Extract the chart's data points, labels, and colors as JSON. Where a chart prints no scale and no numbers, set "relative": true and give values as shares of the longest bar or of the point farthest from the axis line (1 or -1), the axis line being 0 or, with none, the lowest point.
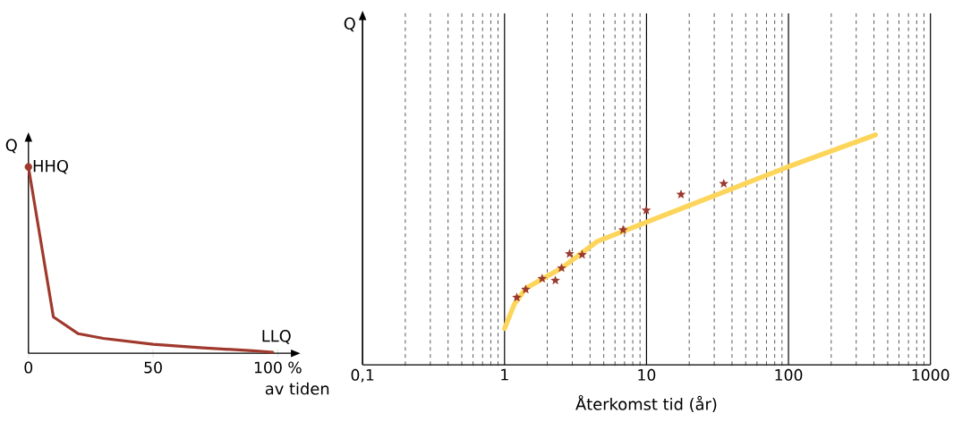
{
  "chart_data": [
    {
      "type": "line",
      "relative": true,
      "xlim": [
        0,
        108
      ],
      "xticks": [
        0,
        50,
        {
          "value": 100,
          "label": "100 %"
        }
      ],
      "xlabel": "av tiden",
      "ylabel": "Q",
      "marker": "none",
      "series": [
        {
          "color": "#a0392d",
          "x": [
            0,
            10,
            20,
            30,
            50,
            70,
            90,
            98
          ],
          "values": [
            1,
            0.195,
            0.105,
            0.08,
            0.048,
            0.029,
            0.014,
            0.005
          ]
        },
        {
          "type": "scatter",
          "marker": "circle",
          "color": "#a0392d",
          "x": [
            0
          ],
          "values": [
            1
          ]
        }
      ],
      "annotations": [
        {
          "text": "HHQ",
          "x": 0,
          "y": 1
        },
        {
          "text": "LLQ",
          "x": 98,
          "y": 0.005
        }
      ]
    },
    {
      "type": "scatter",
      "relative": true,
      "log": "x",
      "grid": "x",
      "xlim": [
        0.1,
        1000
      ],
      "xticks": [
        {
          "value": 0.1,
          "label": "0,1"
        },
        1,
        10,
        100,
        1000
      ],
      "xlabel": "Återkomst tid (år)",
      "ylabel": "Q",
      "series": [
        {
          "type": "line",
          "color": "#fdd55b",
          "x": [
            1.0,
            1.17,
            1.41,
            2.52,
            4.5,
            99,
            410
          ],
          "values": [
            0.158,
            0.263,
            0.332,
            0.421,
            0.537,
            0.861,
            1.0
          ]
        },
        {
          "marker": "star",
          "color": "#9b3a2e",
          "x": [
            1.22,
            1.41,
            1.84,
            2.28,
            2.52,
            2.87,
            3.52,
            6.84,
            9.96,
            17.5,
            35
          ],
          "values": [
            0.293,
            0.328,
            0.375,
            0.367,
            0.421,
            0.483,
            0.479,
            0.587,
            0.672,
            0.741,
            0.788
          ]
        }
      ]
    }
  ]
}
